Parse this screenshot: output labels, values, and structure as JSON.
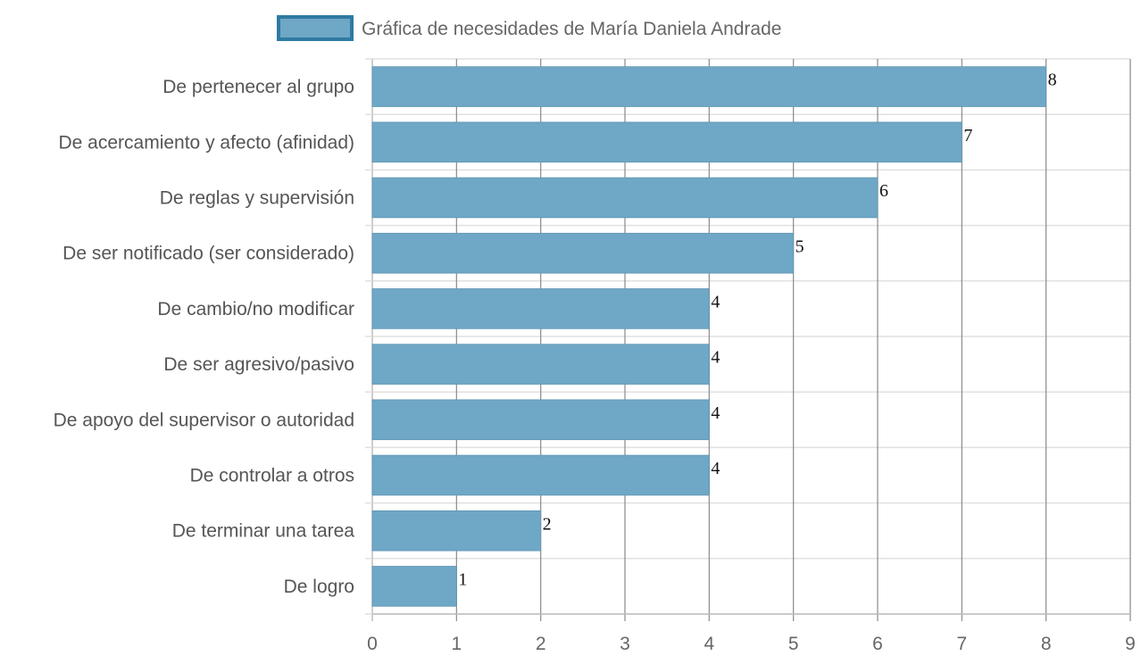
{
  "chart_data": {
    "type": "bar",
    "orientation": "horizontal",
    "categories": [
      "De pertenecer al grupo",
      "De acercamiento y afecto (afinidad)",
      "De reglas y supervisión",
      "De ser notificado (ser considerado)",
      "De cambio/no modificar",
      "De ser agresivo/pasivo",
      "De apoyo del supervisor o autoridad",
      "De controlar a otros",
      "De terminar una tarea",
      "De logro"
    ],
    "series": [
      {
        "name": "Gráfica de necesidades de María Daniela Andrade",
        "values": [
          8,
          7,
          6,
          5,
          4,
          4,
          4,
          4,
          2,
          1
        ],
        "color": "#6fa7c6",
        "border_color": "#2f7aa3"
      }
    ],
    "xlim": [
      0,
      9
    ],
    "x_ticks": [
      "0",
      "1",
      "2",
      "3",
      "4",
      "5",
      "6",
      "7",
      "8",
      "9"
    ],
    "grid": true,
    "legend_position": "top",
    "data_labels": true
  }
}
